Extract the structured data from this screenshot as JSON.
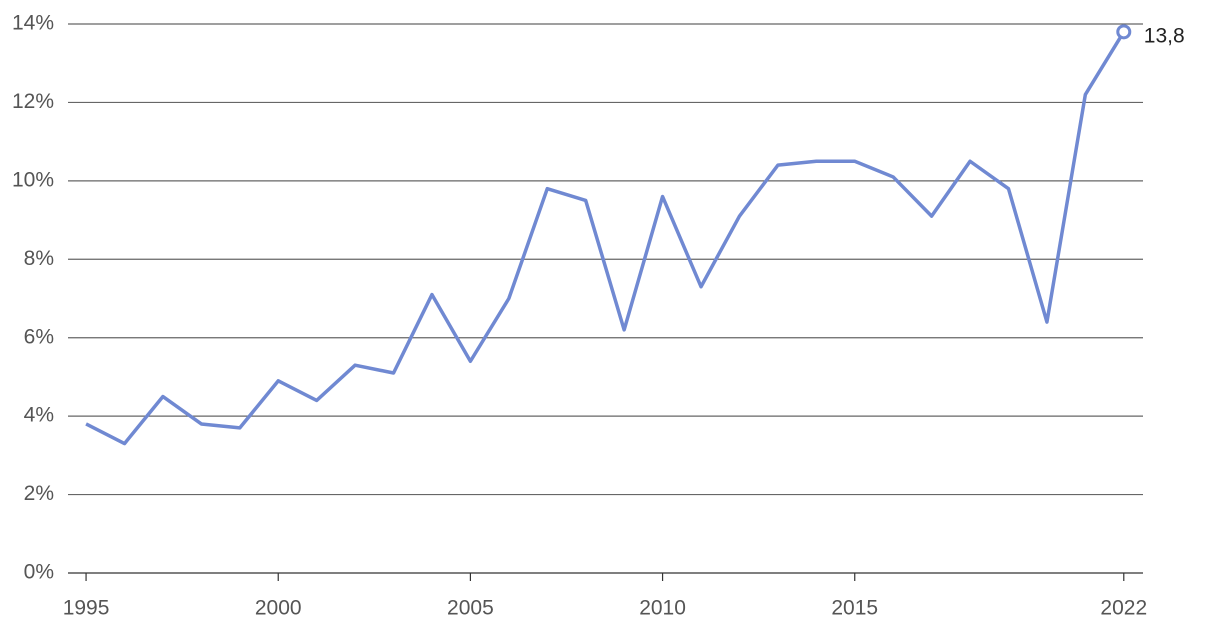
{
  "chart_data": {
    "type": "line",
    "x": [
      1995,
      1996,
      1997,
      1998,
      1999,
      2000,
      2001,
      2002,
      2003,
      2004,
      2005,
      2006,
      2007,
      2008,
      2009,
      2010,
      2011,
      2012,
      2013,
      2014,
      2015,
      2016,
      2017,
      2018,
      2019,
      2020,
      2021,
      2022
    ],
    "series": [
      {
        "color": "#7089d2",
        "values": [
          3.8,
          3.3,
          4.5,
          3.8,
          3.7,
          4.9,
          4.4,
          5.3,
          5.1,
          7.1,
          5.4,
          7.0,
          9.8,
          9.5,
          6.2,
          9.6,
          7.3,
          9.1,
          10.4,
          10.5,
          10.5,
          10.1,
          9.1,
          10.5,
          9.8,
          6.4,
          12.2,
          13.8
        ],
        "value_labels": [
          null,
          null,
          null,
          null,
          null,
          null,
          null,
          null,
          null,
          null,
          null,
          null,
          null,
          null,
          null,
          null,
          null,
          null,
          null,
          null,
          null,
          null,
          null,
          null,
          null,
          null,
          null,
          "13,8"
        ]
      }
    ],
    "xlim": [
      1994.53,
      2022.5
    ],
    "xticks": [
      1995,
      2000,
      2005,
      2010,
      2015,
      2022
    ],
    "ylim": [
      0,
      14
    ],
    "yticks": [
      {
        "value": 0,
        "label": "0%"
      },
      {
        "value": 2,
        "label": "2%"
      },
      {
        "value": 4,
        "label": "4%"
      },
      {
        "value": 6,
        "label": "6%"
      },
      {
        "value": 8,
        "label": "8%"
      },
      {
        "value": 10,
        "label": "10%"
      },
      {
        "value": 12,
        "label": "12%"
      },
      {
        "value": 14,
        "label": "14%"
      }
    ],
    "grid": true
  }
}
